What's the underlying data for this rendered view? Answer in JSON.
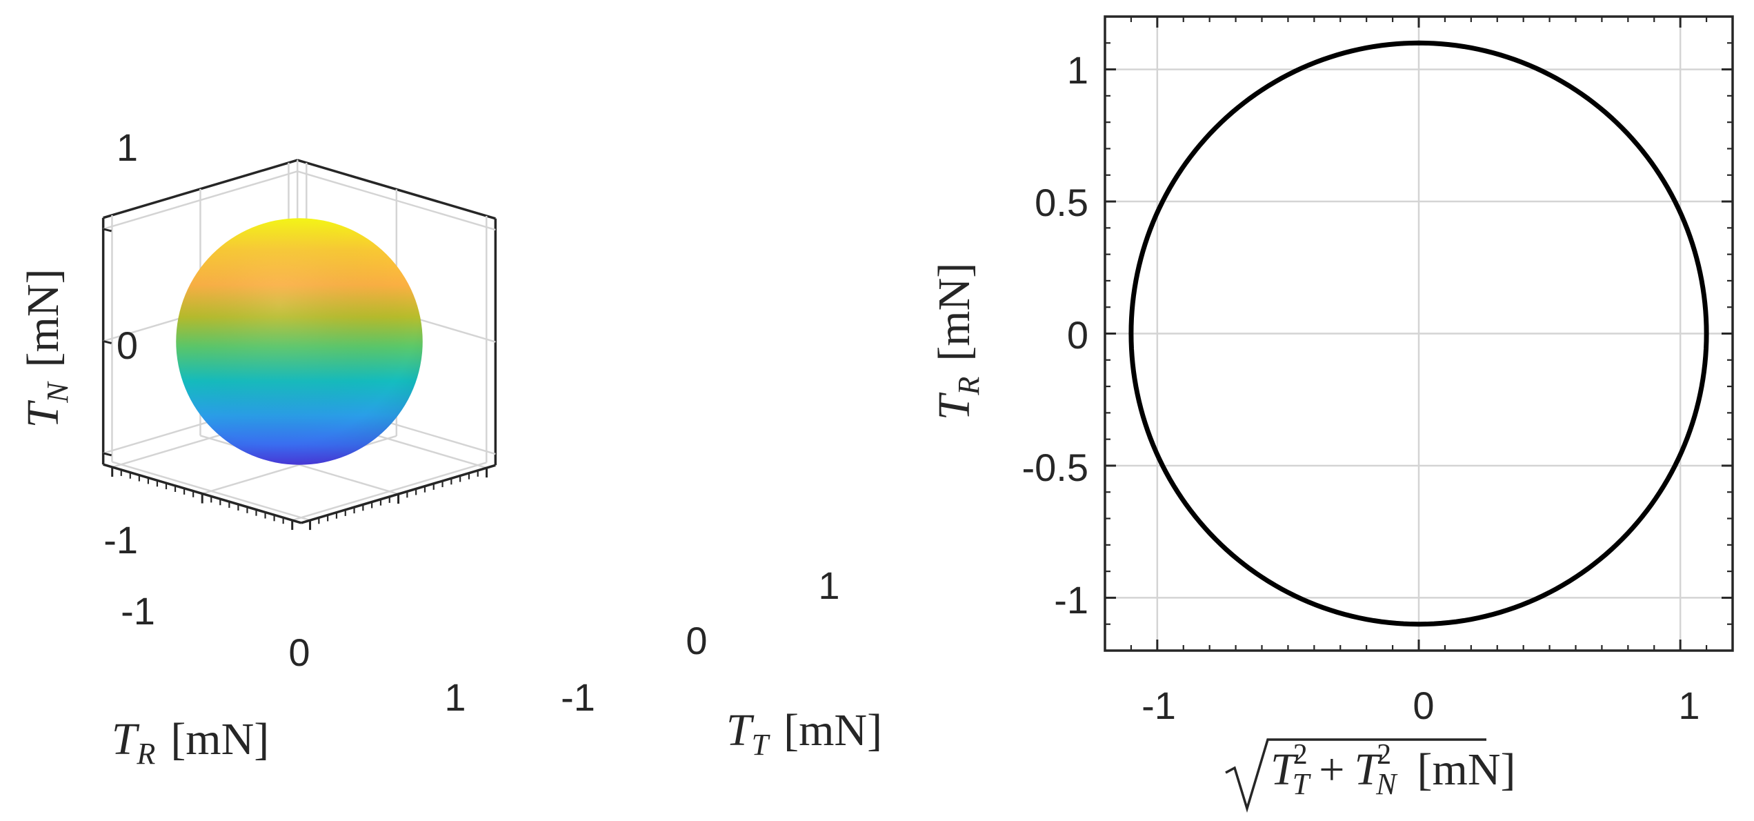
{
  "chart_data": [
    {
      "type": "surface",
      "kind": "sphere",
      "radius": 1.1,
      "center": [
        0,
        0,
        0
      ],
      "colormap": "parula",
      "color_by": "T_N",
      "axes": {
        "x": {
          "label_symbol": "T",
          "label_subscript": "R",
          "label_unit": "[mN]",
          "ticks": [
            -1,
            0,
            1
          ],
          "tick_labels": [
            "-1",
            "0",
            "1"
          ],
          "lim": [
            -1.1,
            1.1
          ]
        },
        "y": {
          "label_symbol": "T",
          "label_subscript": "T",
          "label_unit": "[mN]",
          "ticks": [
            -1,
            0,
            1
          ],
          "tick_labels": [
            "-1",
            "0",
            "1"
          ],
          "lim": [
            -1.1,
            1.1
          ]
        },
        "z": {
          "label_symbol": "T",
          "label_subscript": "N",
          "label_unit": "[mN]",
          "ticks": [
            -1,
            0,
            1
          ],
          "tick_labels": [
            "-1",
            "0",
            "1"
          ],
          "lim": [
            -1.1,
            1.1
          ]
        }
      },
      "grid": true,
      "box": true
    },
    {
      "type": "line",
      "kind": "circle",
      "radius": 1.1,
      "center": [
        0,
        0
      ],
      "line_color": "#000000",
      "grid": true,
      "minor_ticks": true,
      "xlim": [
        -1.2,
        1.2
      ],
      "ylim": [
        -1.2,
        1.2
      ],
      "x_ticks": [
        -1,
        0,
        1
      ],
      "x_tick_labels": [
        "-1",
        "0",
        "1"
      ],
      "y_ticks": [
        -1,
        -0.5,
        0,
        0.5,
        1
      ],
      "y_tick_labels": [
        "-1",
        "-0.5",
        "0",
        "0.5",
        "1"
      ],
      "xlabel": {
        "sub1": "T",
        "sub2": "N",
        "unit": "[mN]"
      },
      "ylabel": {
        "symbol": "T",
        "subscript": "R",
        "unit": "[mN]"
      }
    }
  ]
}
